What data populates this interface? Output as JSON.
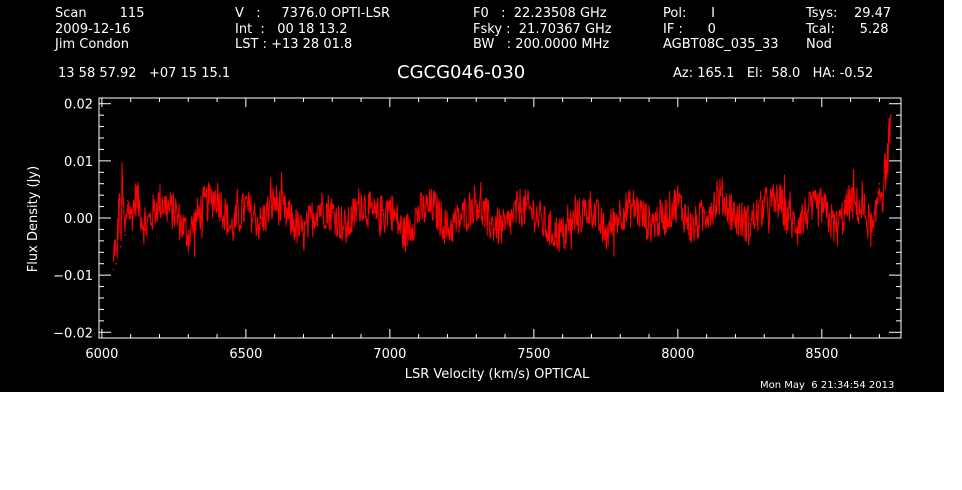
{
  "header": {
    "col1": [
      "Scan        115",
      "2009-12-16",
      "Jim Condon"
    ],
    "col2": [
      "V   :     7376.0 OPTI-LSR",
      "Int  :   00 18 13.2",
      "LST : +13 28 01.8"
    ],
    "col3": [
      "F0   :  22.23508 GHz",
      "Fsky :  21.70367 GHz",
      "BW   : 200.0000 MHz"
    ],
    "col4": [
      "Pol:      I",
      "IF :      0",
      "AGBT08C_035_33"
    ],
    "col5": [
      "Tsys:    29.47",
      "Tcal:      5.28",
      "Nod"
    ],
    "coords": "13 58 57.92   +07 15 15.1",
    "source": "CGCG046-030",
    "azel": "Az: 165.1   El:  58.0   HA: -0.52",
    "timestamp": "Mon May  6 21:34:54 2013"
  },
  "colors": {
    "background": "#000000",
    "axes": "#ffffff",
    "trace": "#ff0000"
  },
  "chart_data": {
    "type": "line",
    "xlabel": "LSR Velocity (km/s) OPTICAL",
    "ylabel": "Flux Density (Jy)",
    "xlim": [
      5990,
      8775
    ],
    "ylim": [
      -0.021,
      0.021
    ],
    "xticks": [
      6000,
      6500,
      7000,
      7500,
      8000,
      8500
    ],
    "xtick_labels": [
      "6000",
      "6500",
      "7000",
      "7500",
      "8000",
      "8500"
    ],
    "yticks": [
      -0.02,
      -0.01,
      0.0,
      0.01,
      0.02
    ],
    "ytick_labels": [
      "−0.02",
      "−0.01",
      "0.00",
      "0.01",
      "0.02"
    ],
    "grid": false,
    "series": [
      {
        "x": [
          6040,
          6045,
          6050,
          6055,
          6060,
          6065,
          6070,
          6075,
          6080,
          6090,
          6100,
          6120,
          6150,
          6200,
          6250,
          6300,
          6350,
          6400,
          6450,
          6500,
          6550,
          6600,
          6650,
          6700,
          6750,
          6800,
          6850,
          6900,
          6950,
          7000,
          7050,
          7100,
          7150,
          7200,
          7250,
          7300,
          7350,
          7400,
          7450,
          7500,
          7550,
          7600,
          7650,
          7700,
          7750,
          7800,
          7850,
          7900,
          7950,
          8000,
          8050,
          8100,
          8150,
          8200,
          8250,
          8300,
          8350,
          8400,
          8450,
          8500,
          8550,
          8600,
          8650,
          8680,
          8700,
          8710,
          8720,
          8730,
          8740
        ],
        "y": [
          -0.009,
          -0.004,
          -0.008,
          -0.003,
          0.004,
          -0.005,
          0.006,
          0.001,
          -0.003,
          0.003,
          0.0,
          0.004,
          -0.002,
          0.003,
          0.001,
          -0.003,
          0.002,
          0.004,
          -0.002,
          0.002,
          -0.001,
          0.003,
          0.0,
          -0.003,
          0.002,
          0.001,
          -0.002,
          0.003,
          0.0,
          0.002,
          -0.003,
          0.001,
          0.002,
          -0.002,
          0.0,
          0.003,
          -0.001,
          -0.002,
          0.002,
          0.001,
          -0.002,
          -0.003,
          0.0,
          0.002,
          -0.003,
          0.001,
          0.002,
          -0.001,
          0.0,
          0.003,
          -0.002,
          0.001,
          0.004,
          0.0,
          -0.001,
          0.002,
          0.003,
          -0.001,
          0.001,
          0.002,
          -0.002,
          0.003,
          0.001,
          -0.003,
          0.006,
          0.004,
          0.008,
          0.011,
          0.018
        ]
      }
    ]
  }
}
